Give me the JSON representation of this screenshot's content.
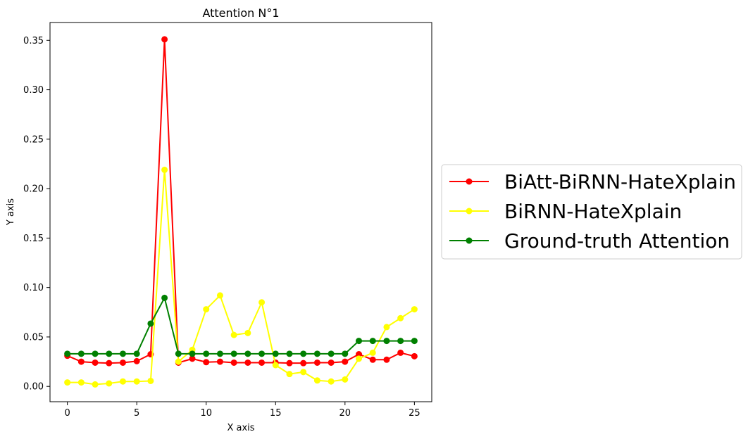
{
  "chart_data": {
    "type": "line",
    "title": "Attention N°1",
    "xlabel": "X axis",
    "ylabel": "Y axis",
    "xlim": [
      -1.25,
      26.25
    ],
    "ylim": [
      -0.0155,
      0.368
    ],
    "xticks": [
      0,
      5,
      10,
      15,
      20,
      25
    ],
    "yticks": [
      0.0,
      0.05,
      0.1,
      0.15,
      0.2,
      0.25,
      0.3,
      0.35
    ],
    "ytick_labels": [
      "0.00",
      "0.05",
      "0.10",
      "0.15",
      "0.20",
      "0.25",
      "0.30",
      "0.35"
    ],
    "grid": false,
    "legend_position": "outside-right",
    "x": [
      0,
      1,
      2,
      3,
      4,
      5,
      6,
      7,
      8,
      9,
      10,
      11,
      12,
      13,
      14,
      15,
      16,
      17,
      18,
      19,
      20,
      21,
      22,
      23,
      24,
      25
    ],
    "series": [
      {
        "name": "BiAtt-BiRNN-HateXplain",
        "color": "#ff0000",
        "values": [
          0.031,
          0.025,
          0.024,
          0.0235,
          0.024,
          0.0255,
          0.0325,
          0.351,
          0.024,
          0.028,
          0.0245,
          0.025,
          0.024,
          0.024,
          0.024,
          0.024,
          0.0235,
          0.0235,
          0.024,
          0.024,
          0.025,
          0.0325,
          0.027,
          0.027,
          0.034,
          0.0305
        ]
      },
      {
        "name": "BiRNN-HateXplain",
        "color": "#ffff00",
        "values": [
          0.004,
          0.004,
          0.002,
          0.003,
          0.005,
          0.005,
          0.0055,
          0.219,
          0.025,
          0.037,
          0.078,
          0.092,
          0.052,
          0.054,
          0.085,
          0.0215,
          0.0125,
          0.0145,
          0.006,
          0.005,
          0.007,
          0.028,
          0.034,
          0.06,
          0.069,
          0.078
        ]
      },
      {
        "name": "Ground-truth Attention",
        "color": "#008000",
        "values": [
          0.033,
          0.033,
          0.033,
          0.033,
          0.033,
          0.033,
          0.0635,
          0.0895,
          0.033,
          0.033,
          0.033,
          0.033,
          0.033,
          0.033,
          0.033,
          0.033,
          0.033,
          0.033,
          0.033,
          0.033,
          0.033,
          0.046,
          0.046,
          0.046,
          0.046,
          0.046
        ]
      }
    ]
  }
}
